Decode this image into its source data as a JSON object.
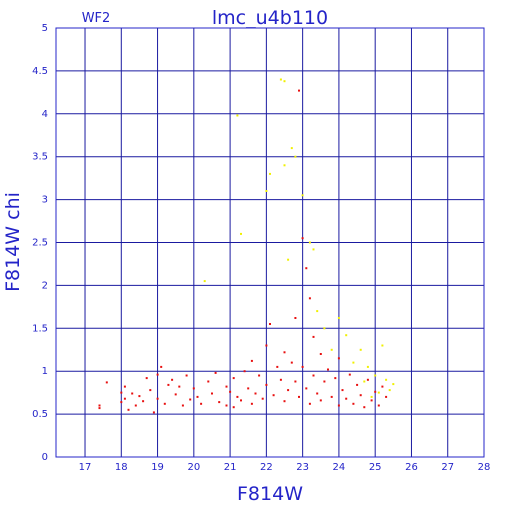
{
  "chart_data": {
    "type": "scatter",
    "title": "lmc_u4b110",
    "subtitle": "WF2",
    "xlabel": "F814W",
    "ylabel": "F814W chi",
    "xlim": [
      16.2,
      28
    ],
    "ylim": [
      0,
      5
    ],
    "x_ticks": [
      17,
      18,
      19,
      20,
      21,
      22,
      23,
      24,
      25,
      26,
      27,
      28
    ],
    "y_ticks": [
      0,
      0.5,
      1,
      1.5,
      2,
      2.5,
      3,
      3.5,
      4,
      4.5,
      5
    ],
    "y_tick_labels": [
      "0",
      "0.5",
      "1",
      "1.5",
      "2",
      "2.5",
      "3",
      "3.5",
      "4",
      "4.5",
      "5"
    ],
    "grid": true,
    "colors": {
      "axis": "#2424c8",
      "grid": "#1a1aa0",
      "bright": "#e81010",
      "faint": "#f0f000"
    },
    "series": [
      {
        "values": [
          [
            17.4,
            0.57
          ],
          [
            17.4,
            0.6
          ],
          [
            17.6,
            0.87
          ],
          [
            18.0,
            0.64
          ],
          [
            18.0,
            0.75
          ],
          [
            18.1,
            0.68
          ],
          [
            18.1,
            0.82
          ],
          [
            18.2,
            0.55
          ],
          [
            18.3,
            0.74
          ],
          [
            18.4,
            0.6
          ],
          [
            18.5,
            0.71
          ],
          [
            18.6,
            0.65
          ],
          [
            18.7,
            0.92
          ],
          [
            18.8,
            0.78
          ],
          [
            18.9,
            0.52
          ],
          [
            19.0,
            0.68
          ],
          [
            19.0,
            0.96
          ],
          [
            19.1,
            1.05
          ],
          [
            19.2,
            0.62
          ],
          [
            19.3,
            0.84
          ],
          [
            19.4,
            0.9
          ],
          [
            19.5,
            0.73
          ],
          [
            19.6,
            0.82
          ],
          [
            19.7,
            0.6
          ],
          [
            19.8,
            0.95
          ],
          [
            19.9,
            0.67
          ],
          [
            20.0,
            0.8
          ],
          [
            20.1,
            0.7
          ],
          [
            20.2,
            0.62
          ],
          [
            20.4,
            0.88
          ],
          [
            20.5,
            0.74
          ],
          [
            20.6,
            0.98
          ],
          [
            20.7,
            0.64
          ],
          [
            20.9,
            0.82
          ],
          [
            20.9,
            0.6
          ],
          [
            21.0,
            0.76
          ],
          [
            21.1,
            0.58
          ],
          [
            21.1,
            0.92
          ],
          [
            21.2,
            0.7
          ],
          [
            21.3,
            0.66
          ],
          [
            21.4,
            1.0
          ],
          [
            21.5,
            0.8
          ],
          [
            21.6,
            0.62
          ],
          [
            21.6,
            1.12
          ],
          [
            21.7,
            0.74
          ],
          [
            21.8,
            0.95
          ],
          [
            21.9,
            0.68
          ],
          [
            22.0,
            1.3
          ],
          [
            22.0,
            0.84
          ],
          [
            22.1,
            1.55
          ],
          [
            22.2,
            0.72
          ],
          [
            22.3,
            1.05
          ],
          [
            22.4,
            0.9
          ],
          [
            22.5,
            0.65
          ],
          [
            22.5,
            1.22
          ],
          [
            22.6,
            0.78
          ],
          [
            22.7,
            1.1
          ],
          [
            22.8,
            0.88
          ],
          [
            22.8,
            1.62
          ],
          [
            22.9,
            0.7
          ],
          [
            23.0,
            2.55
          ],
          [
            23.0,
            1.05
          ],
          [
            23.1,
            2.2
          ],
          [
            23.1,
            0.8
          ],
          [
            23.2,
            1.85
          ],
          [
            23.2,
            0.62
          ],
          [
            23.3,
            1.4
          ],
          [
            23.3,
            0.95
          ],
          [
            23.4,
            0.74
          ],
          [
            23.5,
            1.2
          ],
          [
            23.5,
            0.66
          ],
          [
            23.6,
            0.88
          ],
          [
            23.7,
            1.02
          ],
          [
            23.8,
            0.7
          ],
          [
            23.9,
            0.92
          ],
          [
            24.0,
            0.6
          ],
          [
            24.0,
            1.15
          ],
          [
            24.1,
            0.78
          ],
          [
            24.2,
            0.68
          ],
          [
            24.3,
            0.96
          ],
          [
            24.4,
            0.62
          ],
          [
            24.5,
            0.84
          ],
          [
            24.6,
            0.72
          ],
          [
            24.7,
            0.58
          ],
          [
            24.8,
            0.9
          ],
          [
            24.9,
            0.66
          ],
          [
            25.0,
            0.76
          ],
          [
            25.1,
            0.6
          ],
          [
            25.2,
            0.82
          ],
          [
            25.3,
            0.7
          ],
          [
            22.9,
            4.27
          ]
        ]
      },
      {
        "values": [
          [
            20.3,
            2.05
          ],
          [
            21.2,
            3.98
          ],
          [
            21.3,
            2.6
          ],
          [
            22.0,
            3.1
          ],
          [
            22.1,
            3.3
          ],
          [
            22.4,
            4.4
          ],
          [
            22.5,
            4.38
          ],
          [
            22.5,
            3.4
          ],
          [
            22.6,
            2.3
          ],
          [
            22.7,
            3.6
          ],
          [
            22.8,
            3.5
          ],
          [
            23.0,
            3.05
          ],
          [
            23.2,
            2.5
          ],
          [
            23.3,
            2.42
          ],
          [
            23.4,
            1.7
          ],
          [
            23.6,
            1.5
          ],
          [
            23.8,
            1.25
          ],
          [
            24.0,
            1.62
          ],
          [
            24.2,
            1.42
          ],
          [
            24.4,
            1.1
          ],
          [
            24.6,
            1.25
          ],
          [
            24.8,
            1.05
          ],
          [
            25.0,
            0.95
          ],
          [
            25.2,
            1.3
          ],
          [
            25.3,
            0.9
          ],
          [
            25.4,
            0.78
          ],
          [
            25.5,
            0.85
          ],
          [
            24.9,
            0.7
          ],
          [
            25.1,
            0.75
          ],
          [
            24.7,
            0.88
          ]
        ]
      }
    ]
  }
}
